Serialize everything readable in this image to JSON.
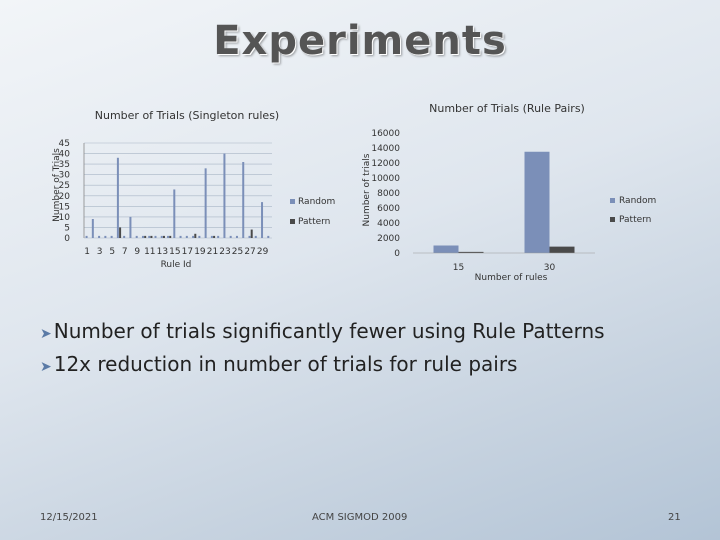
{
  "slide": {
    "title": "Experiments",
    "bullets": [
      "Number of trials significantly fewer using Rule Patterns",
      "12x reduction in number of trials for rule pairs"
    ],
    "footer": {
      "date": "12/15/2021",
      "venue": "ACM SIGMOD 2009",
      "page": "21"
    }
  },
  "chart_data": [
    {
      "type": "bar",
      "title": "Number of Trials (Singleton rules)",
      "xlabel": "Rule Id",
      "ylabel": "Number of Trials",
      "ylim": [
        0,
        45
      ],
      "yticks": [
        0,
        5,
        10,
        15,
        20,
        25,
        30,
        35,
        40,
        45
      ],
      "categories": [
        1,
        2,
        3,
        4,
        5,
        6,
        7,
        8,
        9,
        10,
        11,
        12,
        13,
        14,
        15,
        16,
        17,
        18,
        19,
        20,
        21,
        22,
        23,
        24,
        25,
        26,
        27,
        28,
        29,
        30
      ],
      "xtick_labels": [
        "1",
        "3",
        "5",
        "7",
        "9",
        "11",
        "13",
        "15",
        "17",
        "19",
        "21",
        "23",
        "25",
        "27",
        "29"
      ],
      "series": [
        {
          "name": "Random",
          "color": "#7b8fb8",
          "values": [
            1,
            9,
            1,
            1,
            1,
            38,
            1,
            10,
            1,
            1,
            1,
            1,
            1,
            1,
            23,
            1,
            1,
            1,
            1,
            33,
            1,
            1,
            40,
            1,
            1,
            36,
            1,
            1,
            17,
            1
          ]
        },
        {
          "name": "Pattern",
          "color": "#4a4a4a",
          "values": [
            0,
            0,
            0,
            0,
            0,
            5,
            0,
            0,
            0,
            1,
            1,
            0,
            1,
            1,
            0,
            0,
            0,
            2,
            0,
            0,
            1,
            0,
            0,
            0,
            0,
            0,
            4,
            0,
            0,
            0
          ]
        }
      ],
      "grid": true,
      "legend": "right"
    },
    {
      "type": "bar",
      "title": "Number of Trials (Rule Pairs)",
      "xlabel": "Number of rules",
      "ylabel": "Number of trials",
      "ylim": [
        0,
        16000
      ],
      "yticks": [
        0,
        2000,
        4000,
        6000,
        8000,
        10000,
        12000,
        14000,
        16000
      ],
      "categories": [
        "15",
        "30"
      ],
      "series": [
        {
          "name": "Random",
          "color": "#7b8fb8",
          "values": [
            1000,
            13500
          ]
        },
        {
          "name": "Pattern",
          "color": "#4a4a4a",
          "values": [
            150,
            850
          ]
        }
      ],
      "grid": false,
      "legend": "right"
    }
  ]
}
